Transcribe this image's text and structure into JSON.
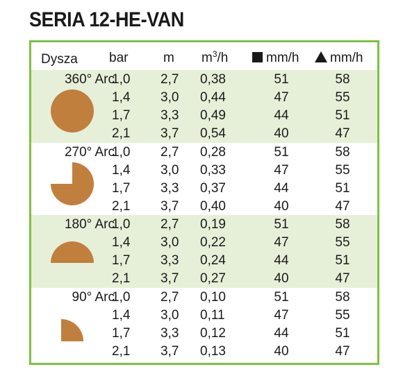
{
  "title": "SERIA 12-HE-VAN",
  "header": {
    "nozzle": "Dysza",
    "pressure": "bar",
    "radius": "m",
    "flow_unit": "m",
    "flow_sup": "3",
    "flow_tail": "/h",
    "square_precip": "mm/h",
    "triangle_precip": "mm/h"
  },
  "colors": {
    "border": "#7dc242",
    "shaded_band": "#e6f0d9",
    "arc_fill": "#c17f3e"
  },
  "groups": [
    {
      "label": "360° Arc",
      "shape": "full-circle",
      "rows": [
        {
          "bar": "1,0",
          "m": "2,7",
          "flow": "0,38",
          "square": "51",
          "triangle": "58"
        },
        {
          "bar": "1,4",
          "m": "3,0",
          "flow": "0,44",
          "square": "47",
          "triangle": "55"
        },
        {
          "bar": "1,7",
          "m": "3,3",
          "flow": "0,49",
          "square": "44",
          "triangle": "51"
        },
        {
          "bar": "2,1",
          "m": "3,7",
          "flow": "0,54",
          "square": "40",
          "triangle": "47"
        }
      ]
    },
    {
      "label": "270° Arc",
      "shape": "three-quarter-circle",
      "rows": [
        {
          "bar": "1,0",
          "m": "2,7",
          "flow": "0,28",
          "square": "51",
          "triangle": "58"
        },
        {
          "bar": "1,4",
          "m": "3,0",
          "flow": "0,33",
          "square": "47",
          "triangle": "55"
        },
        {
          "bar": "1,7",
          "m": "3,3",
          "flow": "0,37",
          "square": "44",
          "triangle": "51"
        },
        {
          "bar": "2,1",
          "m": "3,7",
          "flow": "0,40",
          "square": "40",
          "triangle": "47"
        }
      ]
    },
    {
      "label": "180° Arc",
      "shape": "half-circle",
      "rows": [
        {
          "bar": "1,0",
          "m": "2,7",
          "flow": "0,19",
          "square": "51",
          "triangle": "58"
        },
        {
          "bar": "1,4",
          "m": "3,0",
          "flow": "0,22",
          "square": "47",
          "triangle": "55"
        },
        {
          "bar": "1,7",
          "m": "3,3",
          "flow": "0,24",
          "square": "44",
          "triangle": "51"
        },
        {
          "bar": "2,1",
          "m": "3,7",
          "flow": "0,27",
          "square": "40",
          "triangle": "47"
        }
      ]
    },
    {
      "label": "90° Arc",
      "shape": "quarter-circle",
      "rows": [
        {
          "bar": "1,0",
          "m": "2,7",
          "flow": "0,10",
          "square": "51",
          "triangle": "58"
        },
        {
          "bar": "1,4",
          "m": "3,0",
          "flow": "0,11",
          "square": "47",
          "triangle": "55"
        },
        {
          "bar": "1,7",
          "m": "3,3",
          "flow": "0,12",
          "square": "44",
          "triangle": "51"
        },
        {
          "bar": "2,1",
          "m": "3,7",
          "flow": "0,13",
          "square": "40",
          "triangle": "47"
        }
      ]
    }
  ]
}
